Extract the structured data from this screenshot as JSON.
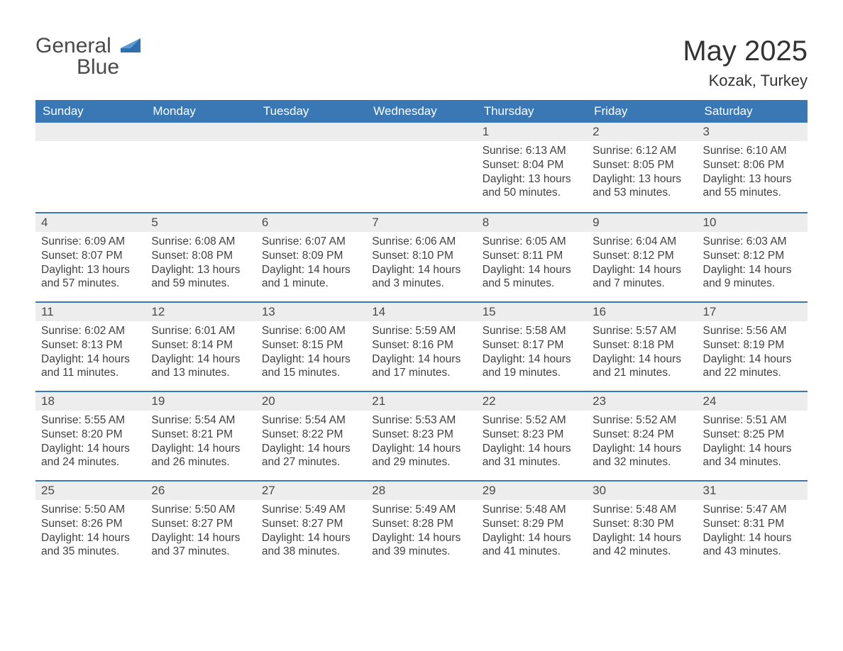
{
  "logo": {
    "word1": "General",
    "word2": "Blue"
  },
  "title": "May 2025",
  "location": "Kozak, Turkey",
  "colors": {
    "header_bg": "#3a78b5",
    "header_text": "#ffffff",
    "daybar_bg": "#ededed",
    "text": "#333333",
    "border": "#3a78b5"
  },
  "weekdays": [
    "Sunday",
    "Monday",
    "Tuesday",
    "Wednesday",
    "Thursday",
    "Friday",
    "Saturday"
  ],
  "weeks": [
    [
      null,
      null,
      null,
      null,
      {
        "n": "1",
        "sunrise": "6:13 AM",
        "sunset": "8:04 PM",
        "daylight": "13 hours and 50 minutes."
      },
      {
        "n": "2",
        "sunrise": "6:12 AM",
        "sunset": "8:05 PM",
        "daylight": "13 hours and 53 minutes."
      },
      {
        "n": "3",
        "sunrise": "6:10 AM",
        "sunset": "8:06 PM",
        "daylight": "13 hours and 55 minutes."
      }
    ],
    [
      {
        "n": "4",
        "sunrise": "6:09 AM",
        "sunset": "8:07 PM",
        "daylight": "13 hours and 57 minutes."
      },
      {
        "n": "5",
        "sunrise": "6:08 AM",
        "sunset": "8:08 PM",
        "daylight": "13 hours and 59 minutes."
      },
      {
        "n": "6",
        "sunrise": "6:07 AM",
        "sunset": "8:09 PM",
        "daylight": "14 hours and 1 minute."
      },
      {
        "n": "7",
        "sunrise": "6:06 AM",
        "sunset": "8:10 PM",
        "daylight": "14 hours and 3 minutes."
      },
      {
        "n": "8",
        "sunrise": "6:05 AM",
        "sunset": "8:11 PM",
        "daylight": "14 hours and 5 minutes."
      },
      {
        "n": "9",
        "sunrise": "6:04 AM",
        "sunset": "8:12 PM",
        "daylight": "14 hours and 7 minutes."
      },
      {
        "n": "10",
        "sunrise": "6:03 AM",
        "sunset": "8:12 PM",
        "daylight": "14 hours and 9 minutes."
      }
    ],
    [
      {
        "n": "11",
        "sunrise": "6:02 AM",
        "sunset": "8:13 PM",
        "daylight": "14 hours and 11 minutes."
      },
      {
        "n": "12",
        "sunrise": "6:01 AM",
        "sunset": "8:14 PM",
        "daylight": "14 hours and 13 minutes."
      },
      {
        "n": "13",
        "sunrise": "6:00 AM",
        "sunset": "8:15 PM",
        "daylight": "14 hours and 15 minutes."
      },
      {
        "n": "14",
        "sunrise": "5:59 AM",
        "sunset": "8:16 PM",
        "daylight": "14 hours and 17 minutes."
      },
      {
        "n": "15",
        "sunrise": "5:58 AM",
        "sunset": "8:17 PM",
        "daylight": "14 hours and 19 minutes."
      },
      {
        "n": "16",
        "sunrise": "5:57 AM",
        "sunset": "8:18 PM",
        "daylight": "14 hours and 21 minutes."
      },
      {
        "n": "17",
        "sunrise": "5:56 AM",
        "sunset": "8:19 PM",
        "daylight": "14 hours and 22 minutes."
      }
    ],
    [
      {
        "n": "18",
        "sunrise": "5:55 AM",
        "sunset": "8:20 PM",
        "daylight": "14 hours and 24 minutes."
      },
      {
        "n": "19",
        "sunrise": "5:54 AM",
        "sunset": "8:21 PM",
        "daylight": "14 hours and 26 minutes."
      },
      {
        "n": "20",
        "sunrise": "5:54 AM",
        "sunset": "8:22 PM",
        "daylight": "14 hours and 27 minutes."
      },
      {
        "n": "21",
        "sunrise": "5:53 AM",
        "sunset": "8:23 PM",
        "daylight": "14 hours and 29 minutes."
      },
      {
        "n": "22",
        "sunrise": "5:52 AM",
        "sunset": "8:23 PM",
        "daylight": "14 hours and 31 minutes."
      },
      {
        "n": "23",
        "sunrise": "5:52 AM",
        "sunset": "8:24 PM",
        "daylight": "14 hours and 32 minutes."
      },
      {
        "n": "24",
        "sunrise": "5:51 AM",
        "sunset": "8:25 PM",
        "daylight": "14 hours and 34 minutes."
      }
    ],
    [
      {
        "n": "25",
        "sunrise": "5:50 AM",
        "sunset": "8:26 PM",
        "daylight": "14 hours and 35 minutes."
      },
      {
        "n": "26",
        "sunrise": "5:50 AM",
        "sunset": "8:27 PM",
        "daylight": "14 hours and 37 minutes."
      },
      {
        "n": "27",
        "sunrise": "5:49 AM",
        "sunset": "8:27 PM",
        "daylight": "14 hours and 38 minutes."
      },
      {
        "n": "28",
        "sunrise": "5:49 AM",
        "sunset": "8:28 PM",
        "daylight": "14 hours and 39 minutes."
      },
      {
        "n": "29",
        "sunrise": "5:48 AM",
        "sunset": "8:29 PM",
        "daylight": "14 hours and 41 minutes."
      },
      {
        "n": "30",
        "sunrise": "5:48 AM",
        "sunset": "8:30 PM",
        "daylight": "14 hours and 42 minutes."
      },
      {
        "n": "31",
        "sunrise": "5:47 AM",
        "sunset": "8:31 PM",
        "daylight": "14 hours and 43 minutes."
      }
    ]
  ],
  "labels": {
    "sunrise": "Sunrise: ",
    "sunset": "Sunset: ",
    "daylight": "Daylight: "
  }
}
